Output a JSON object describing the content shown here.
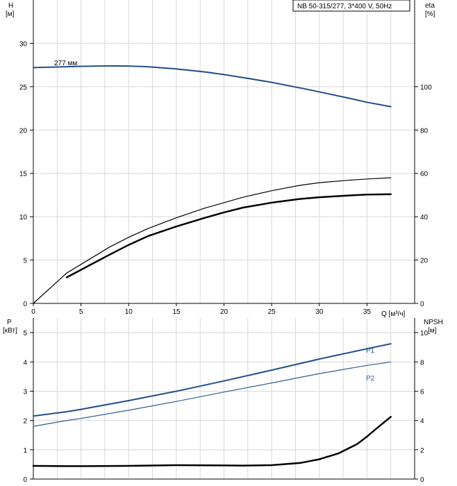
{
  "chart_data": [
    {
      "type": "line",
      "title": "NB 50-315/277, 3*400 V, 50Hz",
      "ylabel": "H",
      "ylabel_unit": "[м]",
      "y2label": "eta",
      "y2label_unit": "[%]",
      "xlabel": "Q [м³/ч]",
      "xlim": [
        0,
        40
      ],
      "xticks": [
        0,
        5,
        10,
        15,
        20,
        25,
        30,
        35
      ],
      "ylim": [
        0,
        35
      ],
      "yticks": [
        0,
        5,
        10,
        15,
        20,
        25,
        30
      ],
      "y2lim": [
        0,
        140
      ],
      "y2ticks": [
        0,
        20,
        40,
        60,
        80,
        100
      ],
      "grid": true,
      "annotations": [
        {
          "text": "277 мм",
          "x": 3,
          "y": 27.6
        }
      ],
      "series": [
        {
          "axis": "y",
          "color": "#1f4e8c",
          "width": 2,
          "x": [
            0,
            3.5,
            5,
            8,
            10,
            12,
            15,
            18,
            20,
            22,
            25,
            28,
            30,
            33,
            35,
            37.5
          ],
          "y": [
            27.2,
            27.3,
            27.35,
            27.4,
            27.38,
            27.3,
            27.05,
            26.7,
            26.4,
            26.05,
            25.5,
            24.85,
            24.4,
            23.7,
            23.2,
            22.7
          ]
        },
        {
          "axis": "y2",
          "color": "#000000",
          "width": 1.2,
          "x": [
            0,
            3.5,
            5,
            8,
            10,
            12,
            15,
            18,
            20,
            22,
            25,
            28,
            30,
            33,
            35,
            37.5
          ],
          "y": [
            0,
            14,
            18,
            26,
            30.5,
            34.5,
            39.5,
            44,
            46.5,
            49,
            52,
            54.5,
            55.7,
            56.8,
            57.4,
            58
          ]
        },
        {
          "axis": "y2",
          "color": "#000000",
          "width": 2.5,
          "x": [
            3.5,
            5,
            8,
            10,
            12,
            15,
            18,
            20,
            22,
            25,
            28,
            30,
            33,
            35,
            37.5
          ],
          "y": [
            12,
            15.5,
            22.5,
            27,
            31,
            35.5,
            39.5,
            42,
            44.2,
            46.5,
            48.2,
            49,
            49.8,
            50.2,
            50.4
          ]
        }
      ]
    },
    {
      "type": "line",
      "ylabel": "P",
      "ylabel_unit": "[кВт]",
      "y2label": "NPSH",
      "y2label_unit": "[м]",
      "xlim": [
        0,
        40
      ],
      "ylim": [
        0,
        5.5
      ],
      "yticks": [
        0,
        1,
        2,
        3,
        4,
        5
      ],
      "y2lim": [
        0,
        11
      ],
      "y2ticks": [
        0,
        2,
        4,
        6,
        8,
        10
      ],
      "grid": true,
      "series": [
        {
          "name": "P1",
          "axis": "y",
          "color": "#1f4e8c",
          "width": 2,
          "x": [
            0,
            3.5,
            5,
            10,
            15,
            20,
            25,
            30,
            35,
            37.5
          ],
          "y": [
            2.15,
            2.3,
            2.38,
            2.68,
            3.0,
            3.35,
            3.72,
            4.1,
            4.45,
            4.62
          ]
        },
        {
          "name": "P2",
          "axis": "y",
          "color": "#2c5d96",
          "width": 1.2,
          "x": [
            0,
            3.5,
            5,
            10,
            15,
            20,
            25,
            30,
            35,
            37.5
          ],
          "y": [
            1.8,
            2.0,
            2.07,
            2.35,
            2.65,
            2.97,
            3.28,
            3.6,
            3.88,
            4.0
          ]
        },
        {
          "axis": "y2",
          "color": "#000000",
          "width": 2.5,
          "x": [
            0,
            3.5,
            5,
            10,
            15,
            20,
            22,
            25,
            28,
            30,
            32,
            34,
            35,
            36,
            37.5
          ],
          "y": [
            0.9,
            0.88,
            0.88,
            0.9,
            0.95,
            0.93,
            0.92,
            0.95,
            1.1,
            1.35,
            1.75,
            2.4,
            2.9,
            3.45,
            4.25
          ]
        }
      ]
    }
  ]
}
